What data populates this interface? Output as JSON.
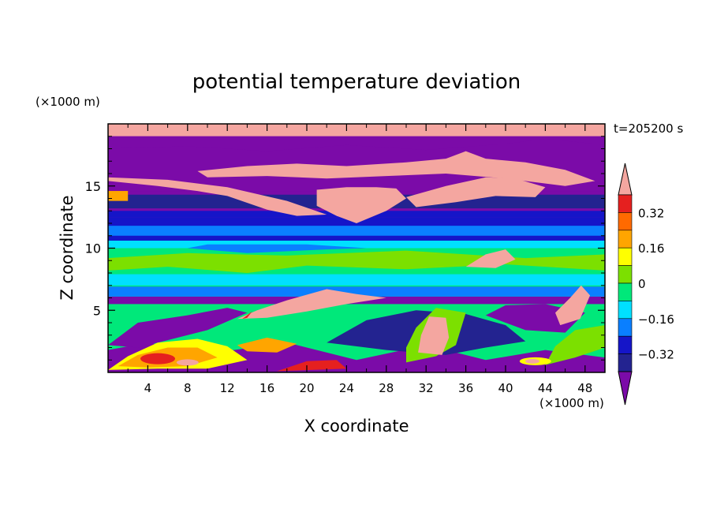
{
  "chart_data": {
    "type": "heatmap",
    "title": "potential temperature deviation",
    "xlabel": "X coordinate",
    "ylabel": "Z coordinate",
    "x_unit": "(×1000 m)",
    "y_unit": "(×1000 m)",
    "time_label": "t=205200 s",
    "xlim": [
      0,
      50
    ],
    "ylim": [
      0,
      20
    ],
    "x_ticks": [
      4,
      8,
      12,
      16,
      20,
      24,
      28,
      32,
      36,
      40,
      44,
      48
    ],
    "y_ticks": [
      5,
      10,
      15
    ],
    "colorbar": {
      "labeled_ticks": [
        0.32,
        0.16,
        0,
        -0.16,
        -0.32
      ],
      "tick_labels": [
        "0.32",
        "0.16",
        "0",
        "−0.16",
        "−0.32"
      ],
      "levels": [
        0.4,
        0.32,
        0.24,
        0.16,
        0.08,
        0,
        -0.08,
        -0.16,
        -0.24,
        -0.32,
        -0.4
      ],
      "colors": [
        "#F4A6A0",
        "#E5201F",
        "#FF6A00",
        "#FFA500",
        "#FFFF00",
        "#7CE000",
        "#00E87A",
        "#00E0FF",
        "#0A7FFF",
        "#1515C8",
        "#232390",
        "#7B0BA8"
      ],
      "extend": "both"
    },
    "layers": [
      {
        "z_range": [
          0.0,
          5.5
        ],
        "description": "turbulent boundary layer, mixed green/purple with warm orange/red/pink blobs"
      },
      {
        "z_range": [
          5.5,
          6.0
        ],
        "value_class": "-0.4",
        "color": "#7B0BA8"
      },
      {
        "z_range": [
          6.0,
          10.5
        ],
        "value_class": "-0.04 to 0.04",
        "color": "#00E87A"
      },
      {
        "z_range": [
          10.5,
          12.5
        ],
        "value_class": "-0.16 to -0.32",
        "color": "#1515C8"
      },
      {
        "z_range": [
          12.5,
          14.5
        ],
        "value_class": "-0.4",
        "color": "#7B0BA8"
      },
      {
        "z_range": [
          14.5,
          18.5
        ],
        "value_class": "mixed purple and pink",
        "color": "#F4A6A0"
      },
      {
        "z_range": [
          18.5,
          20.0
        ],
        "value_class": ">0.4",
        "color": "#F4A6A0"
      }
    ]
  },
  "colors": {
    "pink": "#F4A6A0",
    "red": "#E5201F",
    "orange_red": "#FF6A00",
    "orange": "#FFA500",
    "yellow": "#FFFF00",
    "yellow_green": "#7CE000",
    "green": "#00E87A",
    "cyan": "#00E0FF",
    "blue": "#0A7FFF",
    "dark_blue": "#1515C8",
    "navy": "#232390",
    "purple": "#7B0BA8"
  }
}
